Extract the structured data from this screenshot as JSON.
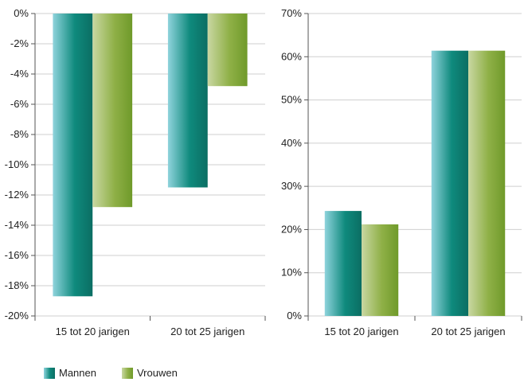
{
  "colors": {
    "mannen": [
      "#8fd3dc",
      "#0f8a7d",
      "#0b6e63"
    ],
    "vrouwen": [
      "#c9d7a2",
      "#8fb047",
      "#6f9a2a"
    ],
    "grid": "#cfcfcf",
    "axis": "#555555"
  },
  "legend": [
    {
      "name": "Mannen",
      "color_key": "mannen"
    },
    {
      "name": "Vrouwen",
      "color_key": "vrouwen"
    }
  ],
  "chart_data": [
    {
      "type": "bar",
      "categories": [
        "15 tot 20 jarigen",
        "20 tot 25 jarigen"
      ],
      "series": [
        {
          "name": "Mannen",
          "values": [
            -18.7,
            -11.5
          ]
        },
        {
          "name": "Vrouwen",
          "values": [
            -12.8,
            -4.8
          ]
        }
      ],
      "ylim": [
        -20,
        0
      ],
      "yticks": [
        0,
        -2,
        -4,
        -6,
        -8,
        -10,
        -12,
        -14,
        -16,
        -18,
        -20
      ],
      "yticklabels": [
        "0%",
        "-2%",
        "-4%",
        "-6%",
        "-8%",
        "-10%",
        "-12%",
        "-14%",
        "-16%",
        "-18%",
        "-20%"
      ],
      "grid": true
    },
    {
      "type": "bar",
      "categories": [
        "15 tot 20 jarigen",
        "20 tot 25 jarigen"
      ],
      "series": [
        {
          "name": "Mannen",
          "values": [
            24.3,
            61.4
          ]
        },
        {
          "name": "Vrouwen",
          "values": [
            21.2,
            61.4
          ]
        }
      ],
      "ylim": [
        0,
        70
      ],
      "yticks": [
        0,
        10,
        20,
        30,
        40,
        50,
        60,
        70
      ],
      "yticklabels": [
        "0%",
        "10%",
        "20%",
        "30%",
        "40%",
        "50%",
        "60%",
        "70%"
      ],
      "grid": true
    }
  ]
}
